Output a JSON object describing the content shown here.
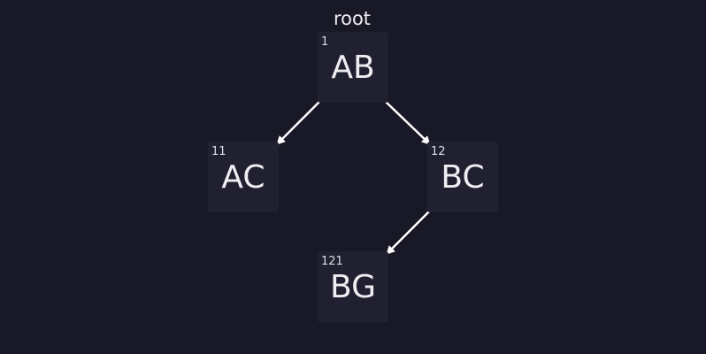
{
  "tree": {
    "root_label": "root",
    "nodes": [
      {
        "index": "1",
        "label": "AB"
      },
      {
        "index": "11",
        "label": "AC"
      },
      {
        "index": "12",
        "label": "BC"
      },
      {
        "index": "121",
        "label": "BG"
      }
    ],
    "edges": [
      {
        "from": "AB",
        "to": "AC"
      },
      {
        "from": "AB",
        "to": "BC"
      },
      {
        "from": "BC",
        "to": "BG"
      }
    ]
  },
  "colors": {
    "background": "#181826",
    "node_fill": "#202030",
    "text": "#ededf2",
    "arrow": "#ffffff"
  }
}
